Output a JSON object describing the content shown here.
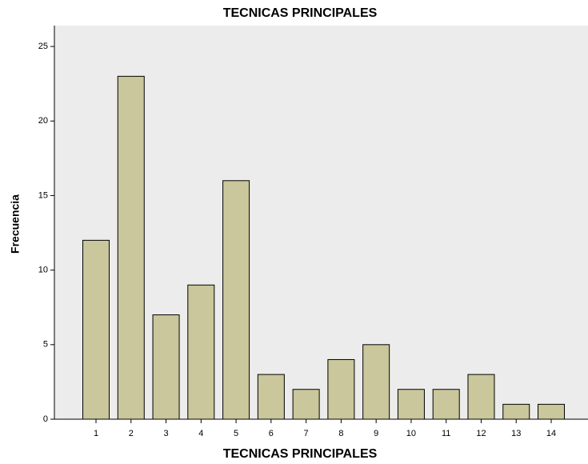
{
  "chart_data": {
    "type": "bar",
    "title": "TECNICAS PRINCIPALES",
    "x_label": "TECNICAS PRINCIPALES",
    "y_label": "Frecuencia",
    "categories": [
      "1",
      "2",
      "3",
      "4",
      "5",
      "6",
      "7",
      "8",
      "9",
      "10",
      "11",
      "12",
      "13",
      "14"
    ],
    "values": [
      12,
      23,
      7,
      9,
      16,
      3,
      2,
      4,
      5,
      2,
      2,
      3,
      1,
      1
    ],
    "color": "#c9c79b",
    "ylim": [
      0,
      26.4
    ],
    "yticks": [
      0,
      5,
      10,
      15,
      20,
      25
    ],
    "grid": false
  }
}
